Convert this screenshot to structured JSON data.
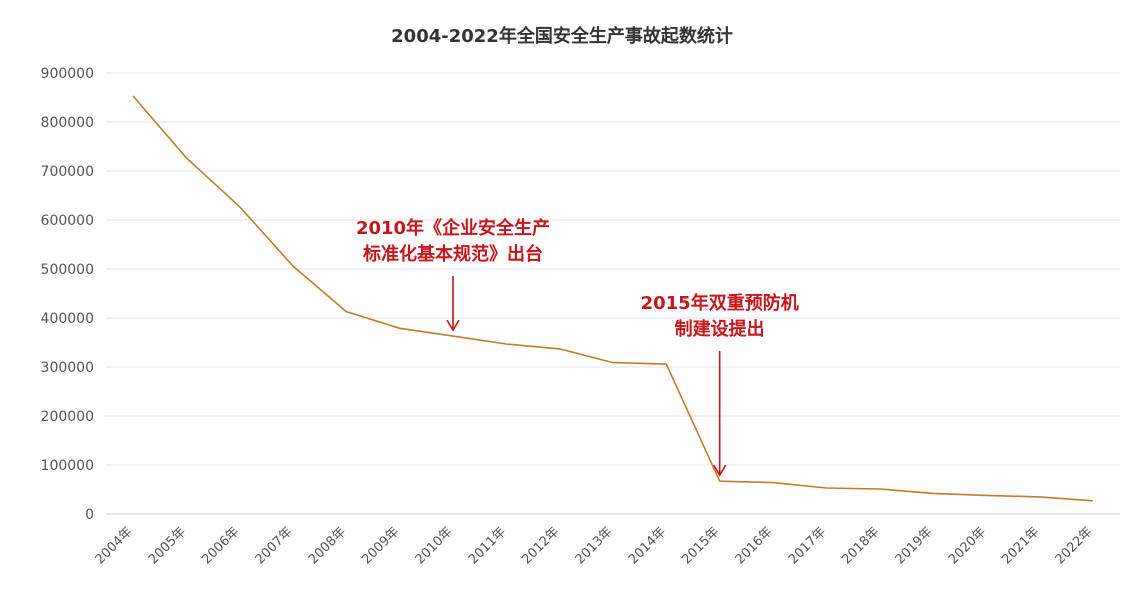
{
  "chart_data": {
    "type": "line",
    "title": "2004-2022年全国安全生产事故起数统计",
    "xlabel": "",
    "ylabel": "",
    "ylim": [
      0,
      900000
    ],
    "yticks": [
      "0",
      "100000",
      "200000",
      "300000",
      "400000",
      "500000",
      "600000",
      "700000",
      "800000",
      "900000"
    ],
    "categories": [
      "2004年",
      "2005年",
      "2006年",
      "2007年",
      "2008年",
      "2009年",
      "2010年",
      "2011年",
      "2012年",
      "2013年",
      "2014年",
      "2015年",
      "2016年",
      "2017年",
      "2018年",
      "2019年",
      "2020年",
      "2021年",
      "2022年"
    ],
    "series": [
      {
        "values": [
          853000,
          727000,
          627000,
          506000,
          413000,
          379000,
          363000,
          347000,
          337000,
          309000,
          306000,
          67000,
          64000,
          53000,
          51000,
          42000,
          38000,
          35000,
          27000
        ],
        "color": "#c47a2b"
      }
    ],
    "grid": true,
    "legend": "none",
    "annotations": [
      {
        "lines": [
          "2010年《企业安全生产",
          "标准化基本规范》出台"
        ],
        "category": "2010年",
        "color": "#c8161d"
      },
      {
        "lines": [
          "2015年双重预防机",
          "制建设提出"
        ],
        "category": "2015年",
        "color": "#c8161d"
      }
    ]
  }
}
